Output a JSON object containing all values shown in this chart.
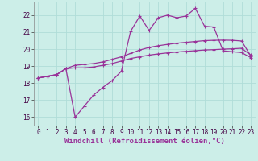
{
  "xlabel": "Windchill (Refroidissement éolien,°C)",
  "xlim": [
    -0.5,
    23.5
  ],
  "ylim": [
    15.5,
    22.8
  ],
  "xticks": [
    0,
    1,
    2,
    3,
    4,
    5,
    6,
    7,
    8,
    9,
    10,
    11,
    12,
    13,
    14,
    15,
    16,
    17,
    18,
    19,
    20,
    21,
    22,
    23
  ],
  "yticks": [
    16,
    17,
    18,
    19,
    20,
    21,
    22
  ],
  "background_color": "#cceee8",
  "line_color": "#993399",
  "grid_color": "#b0ddd8",
  "line1_x": [
    0,
    1,
    2,
    3,
    4,
    5,
    6,
    7,
    8,
    9,
    10,
    11,
    12,
    13,
    14,
    15,
    16,
    17,
    18,
    19,
    20,
    21,
    22,
    23
  ],
  "line1_y": [
    18.3,
    18.4,
    18.5,
    18.85,
    18.9,
    18.9,
    18.95,
    19.05,
    19.15,
    19.3,
    19.45,
    19.55,
    19.65,
    19.72,
    19.78,
    19.83,
    19.87,
    19.91,
    19.95,
    19.97,
    20.0,
    20.02,
    20.05,
    19.65
  ],
  "line2_x": [
    0,
    1,
    2,
    3,
    4,
    5,
    6,
    7,
    8,
    9,
    10,
    11,
    12,
    13,
    14,
    15,
    16,
    17,
    18,
    19,
    20,
    21,
    22,
    23
  ],
  "line2_y": [
    18.3,
    18.4,
    18.5,
    18.85,
    19.05,
    19.1,
    19.15,
    19.25,
    19.4,
    19.55,
    19.75,
    19.95,
    20.1,
    20.2,
    20.28,
    20.35,
    20.4,
    20.45,
    20.5,
    20.52,
    20.53,
    20.52,
    20.48,
    19.6
  ],
  "line3_x": [
    0,
    1,
    2,
    3,
    4,
    5,
    6,
    7,
    8,
    9,
    10,
    11,
    12,
    13,
    14,
    15,
    16,
    17,
    18,
    19,
    20,
    21,
    22,
    23
  ],
  "line3_y": [
    18.3,
    18.4,
    18.5,
    18.85,
    16.0,
    16.65,
    17.3,
    17.75,
    18.15,
    18.7,
    21.05,
    21.95,
    21.1,
    21.85,
    22.0,
    21.85,
    21.95,
    22.4,
    21.35,
    21.3,
    19.9,
    19.85,
    19.8,
    19.5
  ],
  "marker": "+",
  "markersize": 3.5,
  "linewidth": 0.9,
  "tick_fontsize": 5.5,
  "label_fontsize": 6.5
}
